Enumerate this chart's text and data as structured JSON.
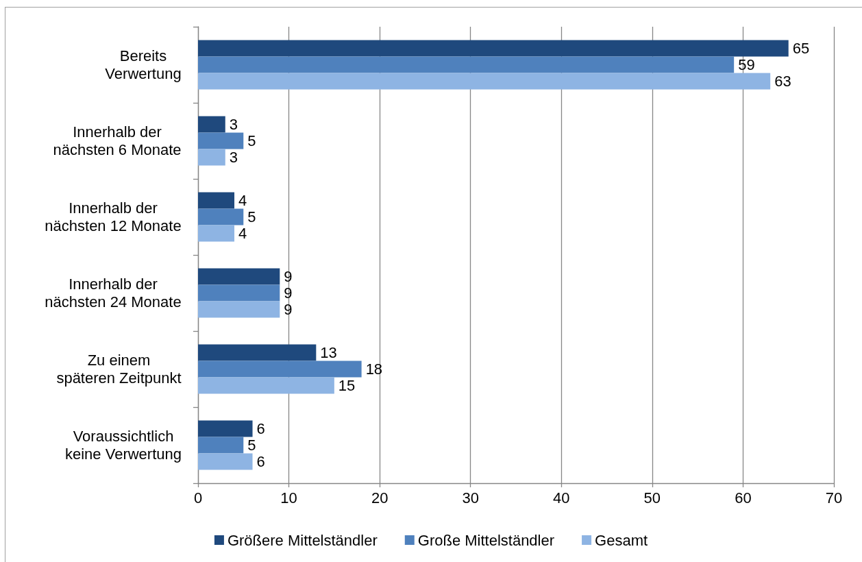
{
  "chart_data": {
    "type": "bar",
    "orientation": "horizontal",
    "categories": [
      "Bereits\nVerwertung",
      "Innerhalb der\nnächsten 6 Monate",
      "Innerhalb der\nnächsten 12 Monate",
      "Innerhalb der\nnächsten 24 Monate",
      "Zu einem\nspäteren Zeitpunkt",
      "Voraussichtlich\nkeine Verwertung"
    ],
    "series": [
      {
        "name": "Größere Mittelständler",
        "color": "#1f497d",
        "values": [
          65,
          3,
          4,
          9,
          13,
          6
        ]
      },
      {
        "name": "Große Mittelständler",
        "color": "#4f81bd",
        "values": [
          59,
          5,
          5,
          9,
          18,
          5
        ]
      },
      {
        "name": "Gesamt",
        "color": "#8eb4e3",
        "values": [
          63,
          3,
          4,
          9,
          15,
          6
        ]
      }
    ],
    "xlim": [
      0,
      70
    ],
    "xticks": [
      0,
      10,
      20,
      30,
      40,
      50,
      60,
      70
    ],
    "data_labels": true,
    "grid": "x",
    "legend": "bottom"
  }
}
